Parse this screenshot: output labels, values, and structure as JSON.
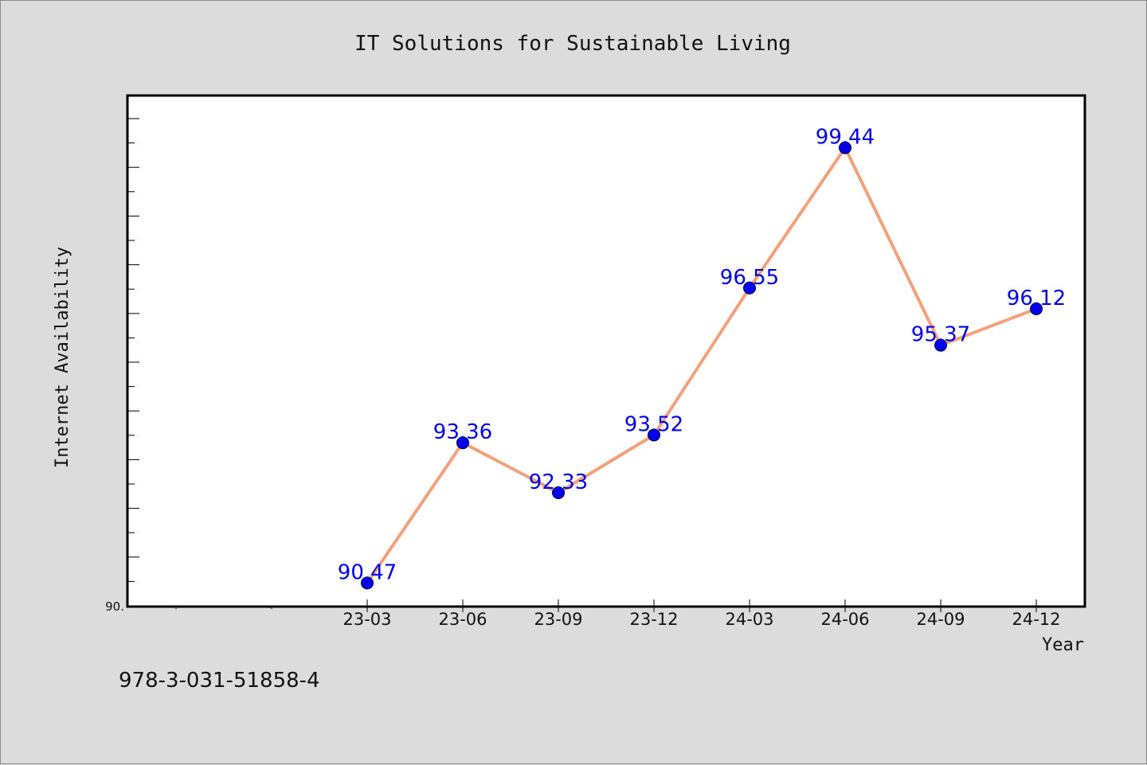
{
  "chart_data": {
    "type": "line",
    "title": "IT Solutions for Sustainable Living",
    "xlabel": "Year",
    "ylabel": "Internet Availability",
    "y_tick_label": "90.",
    "ylim": [
      90,
      100.5
    ],
    "categories": [
      "23-03",
      "23-06",
      "23-09",
      "23-12",
      "24-03",
      "24-06",
      "24-09",
      "24-12"
    ],
    "series": [
      {
        "values": [
          90.47,
          93.36,
          92.33,
          93.52,
          96.55,
          99.44,
          95.37,
          96.12
        ]
      }
    ],
    "data_labels": [
      "90.47",
      "93.36",
      "92.33",
      "93.52",
      "96.55",
      "99.44",
      "95.37",
      "96.12"
    ],
    "line_color": "#f4a07a",
    "marker_color": "#0000ee",
    "label_color": "#0000ee",
    "grid": false
  },
  "footer": {
    "isbn": "978-3-031-51858-4"
  }
}
